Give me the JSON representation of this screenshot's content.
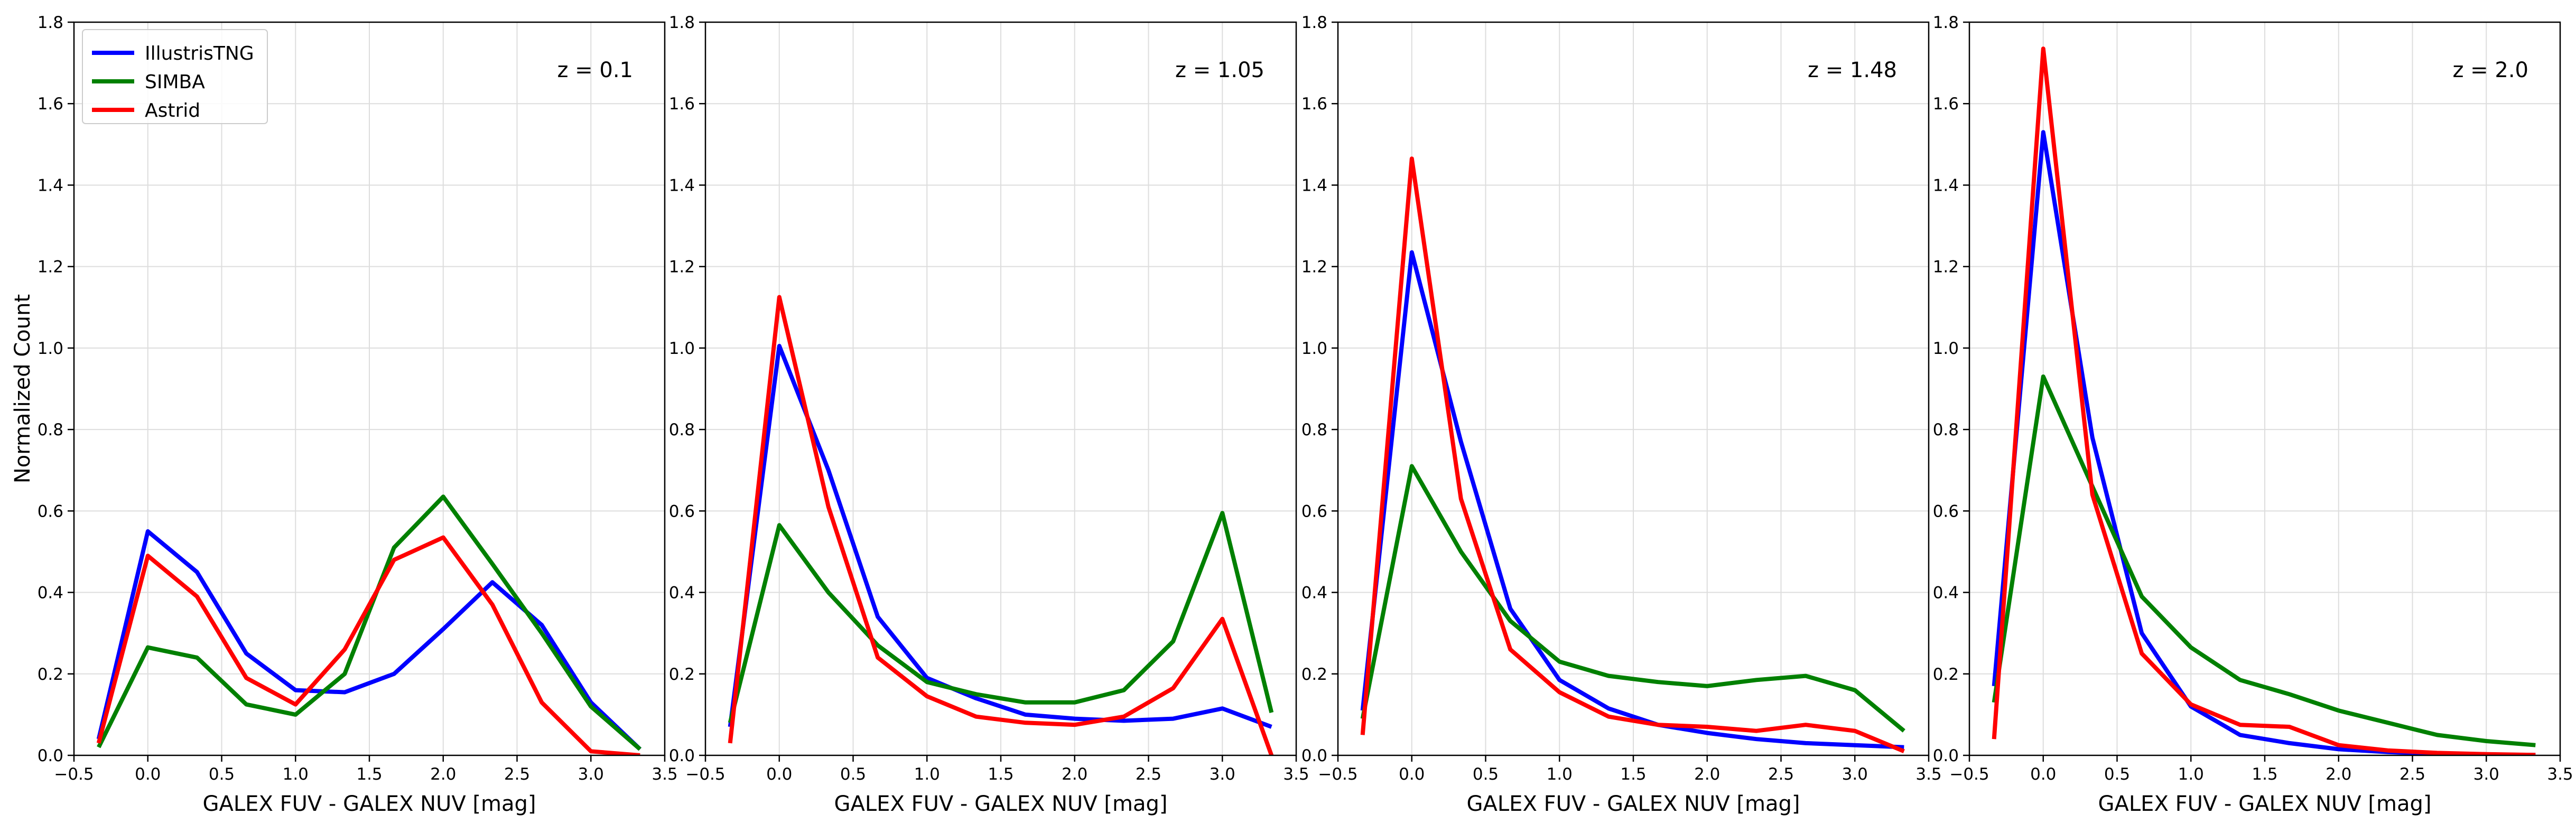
{
  "colors": {
    "IllustrisTNG": "#0000ff",
    "SIMBA": "#008000",
    "Astrid": "#ff0000",
    "grid": "#dddddd",
    "axis": "#000000"
  },
  "chart_data": [
    {
      "type": "line",
      "annotation": "z = 0.1",
      "xlabel": "GALEX FUV - GALEX NUV [mag]",
      "ylabel": "Normalized Count",
      "xlim": [
        -0.5,
        3.5
      ],
      "ylim": [
        0,
        1.8
      ],
      "xticks": [
        "−0.5",
        "0.0",
        "0.5",
        "1.0",
        "1.5",
        "2.0",
        "2.5",
        "3.0",
        "3.5"
      ],
      "yticks": [
        "0.0",
        "0.2",
        "0.4",
        "0.6",
        "0.8",
        "1.0",
        "1.2",
        "1.4",
        "1.6",
        "1.8"
      ],
      "grid": true,
      "legend": "upper-left",
      "x": [
        -0.333,
        0.0,
        0.333,
        0.667,
        1.0,
        1.333,
        1.667,
        2.0,
        2.333,
        2.667,
        3.0,
        3.333
      ],
      "series": [
        {
          "name": "IllustrisTNG",
          "values": [
            0.04,
            0.55,
            0.45,
            0.25,
            0.16,
            0.155,
            0.2,
            0.31,
            0.425,
            0.32,
            0.13,
            0.015
          ]
        },
        {
          "name": "SIMBA",
          "values": [
            0.02,
            0.265,
            0.24,
            0.125,
            0.1,
            0.2,
            0.51,
            0.635,
            0.47,
            0.3,
            0.12,
            0.015
          ]
        },
        {
          "name": "Astrid",
          "values": [
            0.03,
            0.49,
            0.39,
            0.19,
            0.125,
            0.26,
            0.48,
            0.535,
            0.37,
            0.13,
            0.01,
            0.0
          ]
        }
      ]
    },
    {
      "type": "line",
      "annotation": "z = 1.05",
      "xlabel": "GALEX FUV - GALEX NUV [mag]",
      "xlim": [
        -0.5,
        3.5
      ],
      "ylim": [
        0,
        1.8
      ],
      "xticks": [
        "−0.5",
        "0.0",
        "0.5",
        "1.0",
        "1.5",
        "2.0",
        "2.5",
        "3.0",
        "3.5"
      ],
      "yticks": [
        "0.0",
        "0.2",
        "0.4",
        "0.6",
        "0.8",
        "1.0",
        "1.2",
        "1.4",
        "1.6",
        "1.8"
      ],
      "grid": true,
      "x": [
        -0.333,
        0.0,
        0.333,
        0.667,
        1.0,
        1.333,
        1.667,
        2.0,
        2.333,
        2.667,
        3.0,
        3.333
      ],
      "series": [
        {
          "name": "IllustrisTNG",
          "values": [
            0.07,
            1.005,
            0.7,
            0.34,
            0.19,
            0.14,
            0.1,
            0.09,
            0.085,
            0.09,
            0.115,
            0.07
          ]
        },
        {
          "name": "SIMBA",
          "values": [
            0.08,
            0.565,
            0.4,
            0.27,
            0.18,
            0.15,
            0.13,
            0.13,
            0.16,
            0.28,
            0.595,
            0.105
          ]
        },
        {
          "name": "Astrid",
          "values": [
            0.03,
            1.125,
            0.61,
            0.24,
            0.145,
            0.095,
            0.08,
            0.075,
            0.095,
            0.165,
            0.335,
            0.0
          ]
        }
      ]
    },
    {
      "type": "line",
      "annotation": "z = 1.48",
      "xlabel": "GALEX FUV - GALEX NUV [mag]",
      "xlim": [
        -0.5,
        3.5
      ],
      "ylim": [
        0,
        1.8
      ],
      "xticks": [
        "−0.5",
        "0.0",
        "0.5",
        "1.0",
        "1.5",
        "2.0",
        "2.5",
        "3.0",
        "3.5"
      ],
      "yticks": [
        "0.0",
        "0.2",
        "0.4",
        "0.6",
        "0.8",
        "1.0",
        "1.2",
        "1.4",
        "1.6",
        "1.8"
      ],
      "grid": true,
      "x": [
        -0.333,
        0.0,
        0.333,
        0.667,
        1.0,
        1.333,
        1.667,
        2.0,
        2.333,
        2.667,
        3.0,
        3.333
      ],
      "series": [
        {
          "name": "IllustrisTNG",
          "values": [
            0.11,
            1.235,
            0.77,
            0.36,
            0.185,
            0.115,
            0.075,
            0.055,
            0.04,
            0.03,
            0.025,
            0.02
          ]
        },
        {
          "name": "SIMBA",
          "values": [
            0.09,
            0.71,
            0.5,
            0.33,
            0.23,
            0.195,
            0.18,
            0.17,
            0.185,
            0.195,
            0.16,
            0.06
          ]
        },
        {
          "name": "Astrid",
          "values": [
            0.05,
            1.465,
            0.63,
            0.26,
            0.155,
            0.095,
            0.075,
            0.07,
            0.06,
            0.075,
            0.06,
            0.01
          ]
        }
      ]
    },
    {
      "type": "line",
      "annotation": "z = 2.0",
      "xlabel": "GALEX FUV - GALEX NUV [mag]",
      "xlim": [
        -0.5,
        3.5
      ],
      "ylim": [
        0,
        1.8
      ],
      "xticks": [
        "−0.5",
        "0.0",
        "0.5",
        "1.0",
        "1.5",
        "2.0",
        "2.5",
        "3.0",
        "3.5"
      ],
      "yticks": [
        "0.0",
        "0.2",
        "0.4",
        "0.6",
        "0.8",
        "1.0",
        "1.2",
        "1.4",
        "1.6",
        "1.8"
      ],
      "grid": true,
      "x": [
        -0.333,
        0.0,
        0.333,
        0.667,
        1.0,
        1.333,
        1.667,
        2.0,
        2.333,
        2.667,
        3.0,
        3.333
      ],
      "series": [
        {
          "name": "IllustrisTNG",
          "values": [
            0.17,
            1.53,
            0.78,
            0.3,
            0.12,
            0.05,
            0.03,
            0.015,
            0.008,
            0.004,
            0.002,
            0.001
          ]
        },
        {
          "name": "SIMBA",
          "values": [
            0.13,
            0.93,
            0.66,
            0.39,
            0.265,
            0.185,
            0.15,
            0.11,
            0.08,
            0.05,
            0.035,
            0.025
          ]
        },
        {
          "name": "Astrid",
          "values": [
            0.04,
            1.735,
            0.64,
            0.25,
            0.125,
            0.075,
            0.07,
            0.025,
            0.012,
            0.006,
            0.003,
            0.001
          ]
        }
      ]
    }
  ]
}
